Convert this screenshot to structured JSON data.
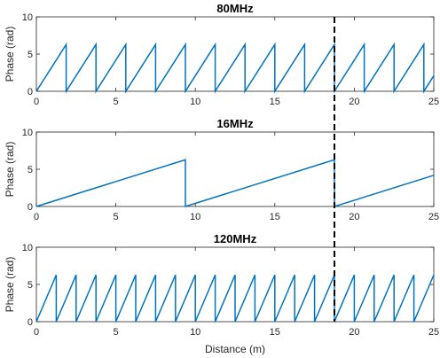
{
  "chart_data": [
    {
      "type": "line",
      "title": "80MHz",
      "xlabel": "",
      "ylabel": "Phase (rad)",
      "xlim": [
        0,
        25
      ],
      "ylim": [
        0,
        10
      ],
      "xticks": [
        0,
        5,
        10,
        15,
        20,
        25
      ],
      "yticks": [
        0,
        5,
        10
      ],
      "grid": false,
      "series": [
        {
          "color": "#0072BD",
          "x": [
            0,
            1.875,
            1.875,
            3.75,
            3.75,
            5.625,
            5.625,
            7.5,
            7.5,
            9.375,
            9.375,
            11.25,
            11.25,
            13.125,
            13.125,
            15,
            15,
            16.875,
            16.875,
            18.75,
            18.75,
            20.625,
            20.625,
            22.5,
            22.5,
            24.375,
            24.375,
            25
          ],
          "y": [
            0,
            6.28,
            0,
            6.28,
            0,
            6.28,
            0,
            6.28,
            0,
            6.28,
            0,
            6.28,
            0,
            6.28,
            0,
            6.28,
            0,
            6.28,
            0,
            6.28,
            0,
            6.28,
            0,
            6.28,
            0,
            6.28,
            0,
            2.09
          ]
        }
      ]
    },
    {
      "type": "line",
      "title": "16MHz",
      "xlabel": "",
      "ylabel": "Phase (rad)",
      "xlim": [
        0,
        25
      ],
      "ylim": [
        0,
        10
      ],
      "xticks": [
        0,
        5,
        10,
        15,
        20,
        25
      ],
      "yticks": [
        0,
        5,
        10
      ],
      "grid": false,
      "series": [
        {
          "color": "#0072BD",
          "x": [
            0,
            9.375,
            9.375,
            18.75,
            18.75,
            25
          ],
          "y": [
            0,
            6.28,
            0,
            6.28,
            0,
            4.19
          ]
        }
      ]
    },
    {
      "type": "line",
      "title": "120MHz",
      "xlabel": "Distance (m)",
      "ylabel": "Phase (rad)",
      "xlim": [
        0,
        25
      ],
      "ylim": [
        0,
        10
      ],
      "xticks": [
        0,
        5,
        10,
        15,
        20,
        25
      ],
      "yticks": [
        0,
        5,
        10
      ],
      "grid": false,
      "series": [
        {
          "color": "#0072BD",
          "x": [
            0,
            1.25,
            1.25,
            2.5,
            2.5,
            3.75,
            3.75,
            5,
            5,
            6.25,
            6.25,
            7.5,
            7.5,
            8.75,
            8.75,
            10,
            10,
            11.25,
            11.25,
            12.5,
            12.5,
            13.75,
            13.75,
            15,
            15,
            16.25,
            16.25,
            17.5,
            17.5,
            18.75,
            18.75,
            20,
            20,
            21.25,
            21.25,
            22.5,
            22.5,
            23.75,
            23.75,
            25
          ],
          "y": [
            0,
            6.28,
            0,
            6.28,
            0,
            6.28,
            0,
            6.28,
            0,
            6.28,
            0,
            6.28,
            0,
            6.28,
            0,
            6.28,
            0,
            6.28,
            0,
            6.28,
            0,
            6.28,
            0,
            6.28,
            0,
            6.28,
            0,
            6.28,
            0,
            6.28,
            0,
            6.28,
            0,
            6.28,
            0,
            6.28,
            0,
            6.28,
            0,
            6.28
          ]
        }
      ]
    }
  ],
  "reference_line": {
    "x": 18.75,
    "color": "#000000",
    "style": "dashed"
  }
}
